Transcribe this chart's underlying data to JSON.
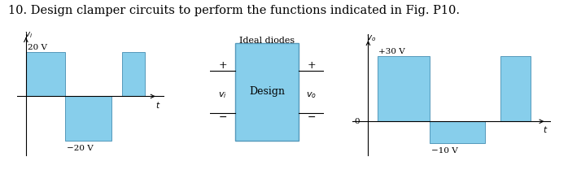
{
  "title": "10. Design clamper circuits to perform the functions indicated in Fig. P10.",
  "title_fontsize": 10.5,
  "bg_color": "#ffffff",
  "waveform_color": "#87CEEB",
  "waveform_edge_color": "#5599BB",
  "left_waveform": {
    "annotation_high": "20 V",
    "annotation_low": "−20 V"
  },
  "right_waveform": {
    "annotation_high": "+30 V",
    "annotation_low": "−10 V",
    "zero_label": "0"
  },
  "box_label_top": "Ideal diodes",
  "box_label_mid": "Design",
  "box_color": "#87CEEB",
  "box_edge_color": "#5599BB"
}
